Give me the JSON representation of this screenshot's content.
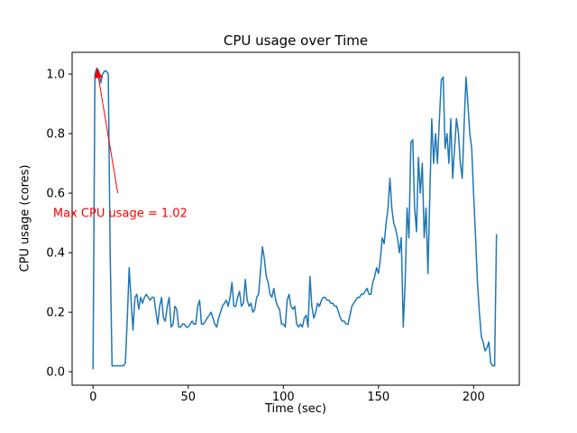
{
  "figure": {
    "title": "CPU usage over Time",
    "xlabel": "Time (sec)",
    "ylabel": "CPU usage (cores)"
  },
  "chart_data": {
    "type": "line",
    "title": "CPU usage over Time",
    "xlabel": "Time (sec)",
    "ylabel": "CPU usage (cores)",
    "xlim": [
      -11,
      224
    ],
    "ylim": [
      -0.045,
      1.073
    ],
    "x_ticks": [
      0,
      50,
      100,
      150,
      200
    ],
    "y_ticks": [
      0.0,
      0.2,
      0.4,
      0.6,
      0.8,
      1.0
    ],
    "grid": false,
    "legend": null,
    "line_color": "#1f77b4",
    "annotation": {
      "text": "Max CPU usage = 1.02",
      "color": "#ff0000",
      "arrow_tip": [
        2,
        1.02
      ],
      "arrow_tail": [
        13,
        0.6
      ],
      "text_pos": [
        -21,
        0.52
      ]
    },
    "points": [
      [
        0,
        0.01
      ],
      [
        1,
        1.0
      ],
      [
        2,
        1.02
      ],
      [
        3,
        1.01
      ],
      [
        4,
        0.97
      ],
      [
        5,
        1.0
      ],
      [
        6,
        1.01
      ],
      [
        7,
        1.01
      ],
      [
        8,
        1.0
      ],
      [
        9,
        0.4
      ],
      [
        10,
        0.02
      ],
      [
        12,
        0.02
      ],
      [
        14,
        0.02
      ],
      [
        16,
        0.02
      ],
      [
        17,
        0.03
      ],
      [
        18,
        0.18
      ],
      [
        19,
        0.35
      ],
      [
        20,
        0.24
      ],
      [
        21,
        0.14
      ],
      [
        22,
        0.25
      ],
      [
        23,
        0.26
      ],
      [
        24,
        0.21
      ],
      [
        25,
        0.25
      ],
      [
        26,
        0.23
      ],
      [
        27,
        0.25
      ],
      [
        28,
        0.26
      ],
      [
        29,
        0.25
      ],
      [
        30,
        0.24
      ],
      [
        31,
        0.25
      ],
      [
        32,
        0.25
      ],
      [
        33,
        0.2
      ],
      [
        34,
        0.16
      ],
      [
        35,
        0.22
      ],
      [
        36,
        0.25
      ],
      [
        37,
        0.18
      ],
      [
        38,
        0.17
      ],
      [
        39,
        0.22
      ],
      [
        40,
        0.25
      ],
      [
        41,
        0.15
      ],
      [
        42,
        0.16
      ],
      [
        43,
        0.22
      ],
      [
        44,
        0.21
      ],
      [
        45,
        0.15
      ],
      [
        46,
        0.15
      ],
      [
        47,
        0.16
      ],
      [
        48,
        0.16
      ],
      [
        49,
        0.15
      ],
      [
        50,
        0.15
      ],
      [
        51,
        0.16
      ],
      [
        52,
        0.17
      ],
      [
        53,
        0.16
      ],
      [
        54,
        0.16
      ],
      [
        55,
        0.22
      ],
      [
        56,
        0.24
      ],
      [
        57,
        0.16
      ],
      [
        58,
        0.16
      ],
      [
        59,
        0.17
      ],
      [
        60,
        0.18
      ],
      [
        61,
        0.19
      ],
      [
        62,
        0.2
      ],
      [
        63,
        0.18
      ],
      [
        64,
        0.16
      ],
      [
        65,
        0.15
      ],
      [
        66,
        0.18
      ],
      [
        67,
        0.2
      ],
      [
        68,
        0.22
      ],
      [
        69,
        0.23
      ],
      [
        70,
        0.24
      ],
      [
        71,
        0.22
      ],
      [
        72,
        0.25
      ],
      [
        73,
        0.3
      ],
      [
        74,
        0.22
      ],
      [
        75,
        0.22
      ],
      [
        76,
        0.25
      ],
      [
        77,
        0.27
      ],
      [
        78,
        0.22
      ],
      [
        79,
        0.23
      ],
      [
        80,
        0.31
      ],
      [
        81,
        0.24
      ],
      [
        82,
        0.22
      ],
      [
        83,
        0.23
      ],
      [
        84,
        0.2
      ],
      [
        85,
        0.21
      ],
      [
        86,
        0.25
      ],
      [
        87,
        0.26
      ],
      [
        88,
        0.34
      ],
      [
        89,
        0.42
      ],
      [
        90,
        0.38
      ],
      [
        91,
        0.32
      ],
      [
        92,
        0.3
      ],
      [
        93,
        0.26
      ],
      [
        94,
        0.25
      ],
      [
        95,
        0.28
      ],
      [
        96,
        0.24
      ],
      [
        97,
        0.22
      ],
      [
        98,
        0.21
      ],
      [
        99,
        0.16
      ],
      [
        100,
        0.16
      ],
      [
        101,
        0.15
      ],
      [
        102,
        0.24
      ],
      [
        103,
        0.26
      ],
      [
        104,
        0.22
      ],
      [
        105,
        0.21
      ],
      [
        106,
        0.22
      ],
      [
        107,
        0.16
      ],
      [
        108,
        0.15
      ],
      [
        109,
        0.16
      ],
      [
        110,
        0.15
      ],
      [
        111,
        0.18
      ],
      [
        112,
        0.19
      ],
      [
        113,
        0.15
      ],
      [
        114,
        0.32
      ],
      [
        115,
        0.22
      ],
      [
        116,
        0.18
      ],
      [
        117,
        0.2
      ],
      [
        118,
        0.23
      ],
      [
        119,
        0.22
      ],
      [
        120,
        0.24
      ],
      [
        121,
        0.25
      ],
      [
        122,
        0.25
      ],
      [
        123,
        0.24
      ],
      [
        124,
        0.24
      ],
      [
        125,
        0.23
      ],
      [
        126,
        0.23
      ],
      [
        127,
        0.22
      ],
      [
        128,
        0.22
      ],
      [
        129,
        0.2
      ],
      [
        130,
        0.18
      ],
      [
        131,
        0.17
      ],
      [
        132,
        0.17
      ],
      [
        133,
        0.16
      ],
      [
        134,
        0.16
      ],
      [
        135,
        0.19
      ],
      [
        136,
        0.22
      ],
      [
        137,
        0.23
      ],
      [
        138,
        0.24
      ],
      [
        139,
        0.25
      ],
      [
        140,
        0.25
      ],
      [
        141,
        0.26
      ],
      [
        142,
        0.26
      ],
      [
        143,
        0.27
      ],
      [
        144,
        0.28
      ],
      [
        145,
        0.26
      ],
      [
        146,
        0.26
      ],
      [
        147,
        0.3
      ],
      [
        148,
        0.32
      ],
      [
        149,
        0.35
      ],
      [
        150,
        0.33
      ],
      [
        151,
        0.38
      ],
      [
        152,
        0.45
      ],
      [
        153,
        0.43
      ],
      [
        154,
        0.5
      ],
      [
        155,
        0.55
      ],
      [
        156,
        0.65
      ],
      [
        157,
        0.55
      ],
      [
        158,
        0.5
      ],
      [
        159,
        0.48
      ],
      [
        160,
        0.45
      ],
      [
        161,
        0.4
      ],
      [
        162,
        0.45
      ],
      [
        163,
        0.15
      ],
      [
        164,
        0.3
      ],
      [
        165,
        0.55
      ],
      [
        166,
        0.45
      ],
      [
        167,
        0.77
      ],
      [
        168,
        0.78
      ],
      [
        169,
        0.55
      ],
      [
        170,
        0.47
      ],
      [
        171,
        0.72
      ],
      [
        172,
        0.6
      ],
      [
        173,
        0.7
      ],
      [
        174,
        0.45
      ],
      [
        175,
        0.55
      ],
      [
        176,
        0.33
      ],
      [
        177,
        0.6
      ],
      [
        178,
        0.85
      ],
      [
        179,
        0.7
      ],
      [
        180,
        0.8
      ],
      [
        181,
        0.7
      ],
      [
        182,
        0.85
      ],
      [
        183,
        0.98
      ],
      [
        184,
        0.99
      ],
      [
        185,
        0.75
      ],
      [
        186,
        0.8
      ],
      [
        187,
        0.7
      ],
      [
        188,
        0.85
      ],
      [
        189,
        0.65
      ],
      [
        190,
        0.75
      ],
      [
        191,
        0.85
      ],
      [
        192,
        0.8
      ],
      [
        193,
        0.7
      ],
      [
        194,
        0.65
      ],
      [
        195,
        0.83
      ],
      [
        196,
        0.99
      ],
      [
        197,
        0.9
      ],
      [
        198,
        0.8
      ],
      [
        199,
        0.75
      ],
      [
        200,
        0.6
      ],
      [
        201,
        0.45
      ],
      [
        202,
        0.3
      ],
      [
        203,
        0.2
      ],
      [
        204,
        0.12
      ],
      [
        205,
        0.1
      ],
      [
        206,
        0.07
      ],
      [
        207,
        0.08
      ],
      [
        208,
        0.1
      ],
      [
        209,
        0.03
      ],
      [
        210,
        0.02
      ],
      [
        211,
        0.02
      ],
      [
        212,
        0.46
      ]
    ]
  }
}
